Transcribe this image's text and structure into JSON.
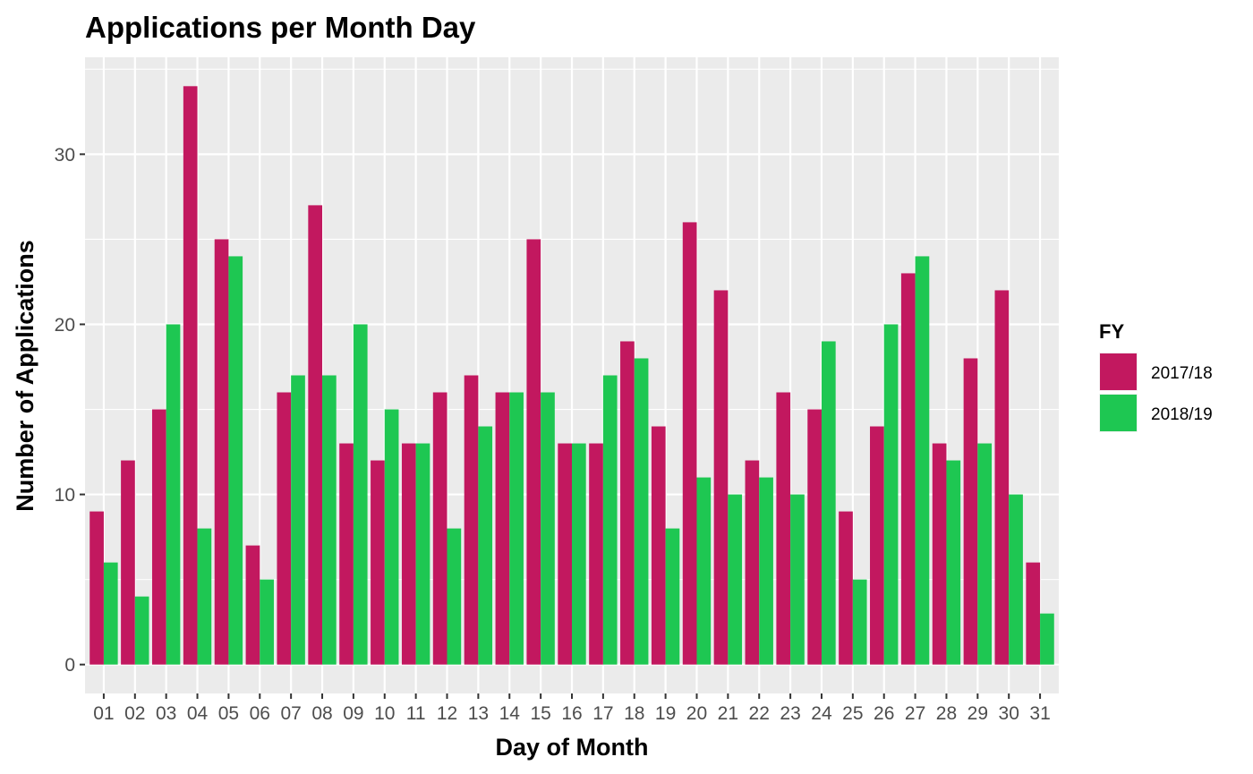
{
  "chart_data": {
    "type": "bar",
    "title": "Applications per Month Day",
    "xlabel": "Day of Month",
    "ylabel": "Number of Applications",
    "ylim": [
      -1.7,
      35.7
    ],
    "yticks": [
      0,
      10,
      20,
      30
    ],
    "categories": [
      "01",
      "02",
      "03",
      "04",
      "05",
      "06",
      "07",
      "08",
      "09",
      "10",
      "11",
      "12",
      "13",
      "14",
      "15",
      "16",
      "17",
      "18",
      "19",
      "20",
      "21",
      "22",
      "23",
      "24",
      "25",
      "26",
      "27",
      "28",
      "29",
      "30",
      "31"
    ],
    "legend": {
      "title": "FY",
      "position": "right"
    },
    "grid": true,
    "series": [
      {
        "name": "2017/18",
        "color": "#C2185F",
        "values": [
          9,
          12,
          15,
          34,
          25,
          7,
          16,
          27,
          13,
          12,
          13,
          16,
          17,
          16,
          25,
          13,
          13,
          19,
          14,
          26,
          22,
          12,
          16,
          15,
          9,
          14,
          23,
          13,
          18,
          22,
          6
        ]
      },
      {
        "name": "2018/19",
        "color": "#1EC752",
        "values": [
          6,
          4,
          20,
          8,
          24,
          5,
          17,
          17,
          20,
          15,
          13,
          8,
          14,
          16,
          16,
          13,
          17,
          18,
          8,
          11,
          10,
          11,
          10,
          19,
          5,
          20,
          24,
          12,
          13,
          10,
          3
        ]
      }
    ]
  }
}
